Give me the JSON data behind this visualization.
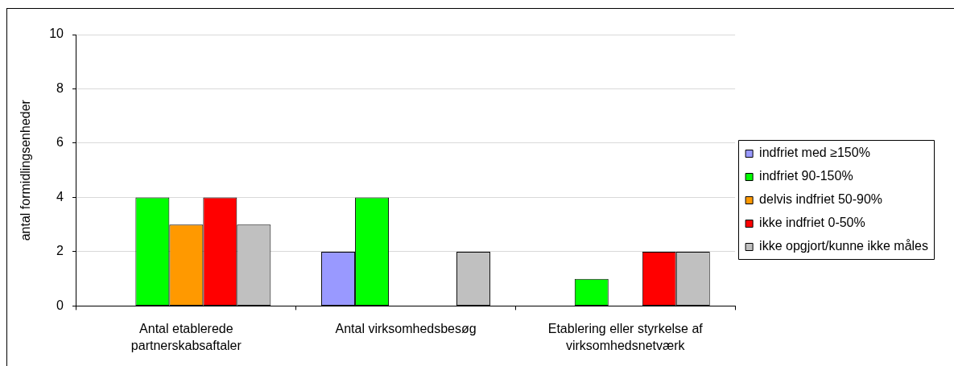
{
  "chart_data": {
    "type": "bar",
    "ylabel": "antal formidlingsenheder",
    "categories": [
      "Antal etablerede partnerskabsaftaler",
      "Antal virksomhedsbesøg",
      "Etablering eller styrkelse af virksomhedsnetværk"
    ],
    "series": [
      {
        "name": "indfriet med ≥150%",
        "color": "#9999ff",
        "values": [
          null,
          2,
          null
        ]
      },
      {
        "name": "indfriet 90-150%",
        "color": "#00ff00",
        "values": [
          4,
          4,
          1
        ]
      },
      {
        "name": "delvis indfriet 50-90%",
        "color": "#ff9900",
        "values": [
          3,
          null,
          null
        ]
      },
      {
        "name": "ikke indfriet 0-50%",
        "color": "#ff0000",
        "values": [
          4,
          null,
          2
        ]
      },
      {
        "name": "ikke opgjort/kunne ikke måles",
        "color": "#c0c0c0",
        "values": [
          3,
          2,
          2
        ]
      }
    ],
    "ylim": [
      0,
      10
    ],
    "yticks": [
      0,
      2,
      4,
      6,
      8,
      10
    ],
    "grid": "y",
    "legend": "right"
  }
}
